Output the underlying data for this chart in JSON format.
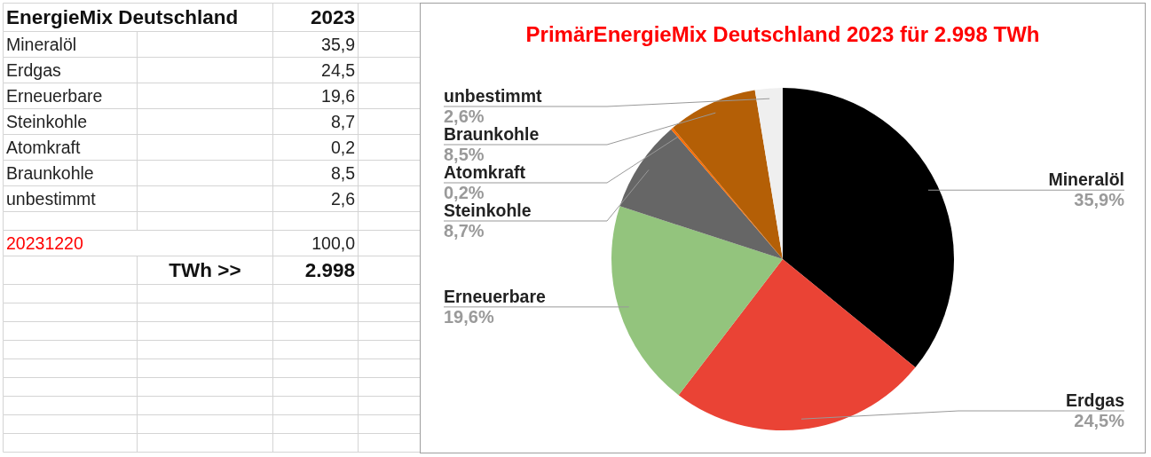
{
  "chart_data": [
    {
      "type": "other",
      "title": "EnergieMix Deutschland",
      "subtitle": "2023",
      "categories": [
        "Mineralöl",
        "Erdgas",
        "Erneuerbare",
        "Steinkohle",
        "Atomkraft",
        "Braunkohle",
        "unbestimmt"
      ],
      "value_labels": [
        "35,9",
        "24,5",
        "19,6",
        "8,7",
        "0,2",
        "8,5",
        "2,6"
      ],
      "annotations": [
        "20231220",
        "100,0",
        "TWh >>",
        "2.998"
      ]
    },
    {
      "type": "pie",
      "title": "PrimärEnergieMix Deutschland 2023 für 2.998 TWh",
      "categories": [
        "Mineralöl",
        "Erdgas",
        "Erneuerbare",
        "Steinkohle",
        "Atomkraft",
        "Braunkohle",
        "unbestimmt"
      ],
      "values": [
        35.9,
        24.5,
        19.6,
        8.7,
        0.2,
        8.5,
        2.6
      ],
      "colors": [
        "#000000",
        "#ea4335",
        "#93c47d",
        "#666666",
        "#ff6d01",
        "#b45f06",
        "#efefef"
      ],
      "value_labels": [
        "35,9%",
        "24,5%",
        "19,6%",
        "8,7%",
        "0,2%",
        "8,5%",
        "2,6%"
      ]
    }
  ]
}
